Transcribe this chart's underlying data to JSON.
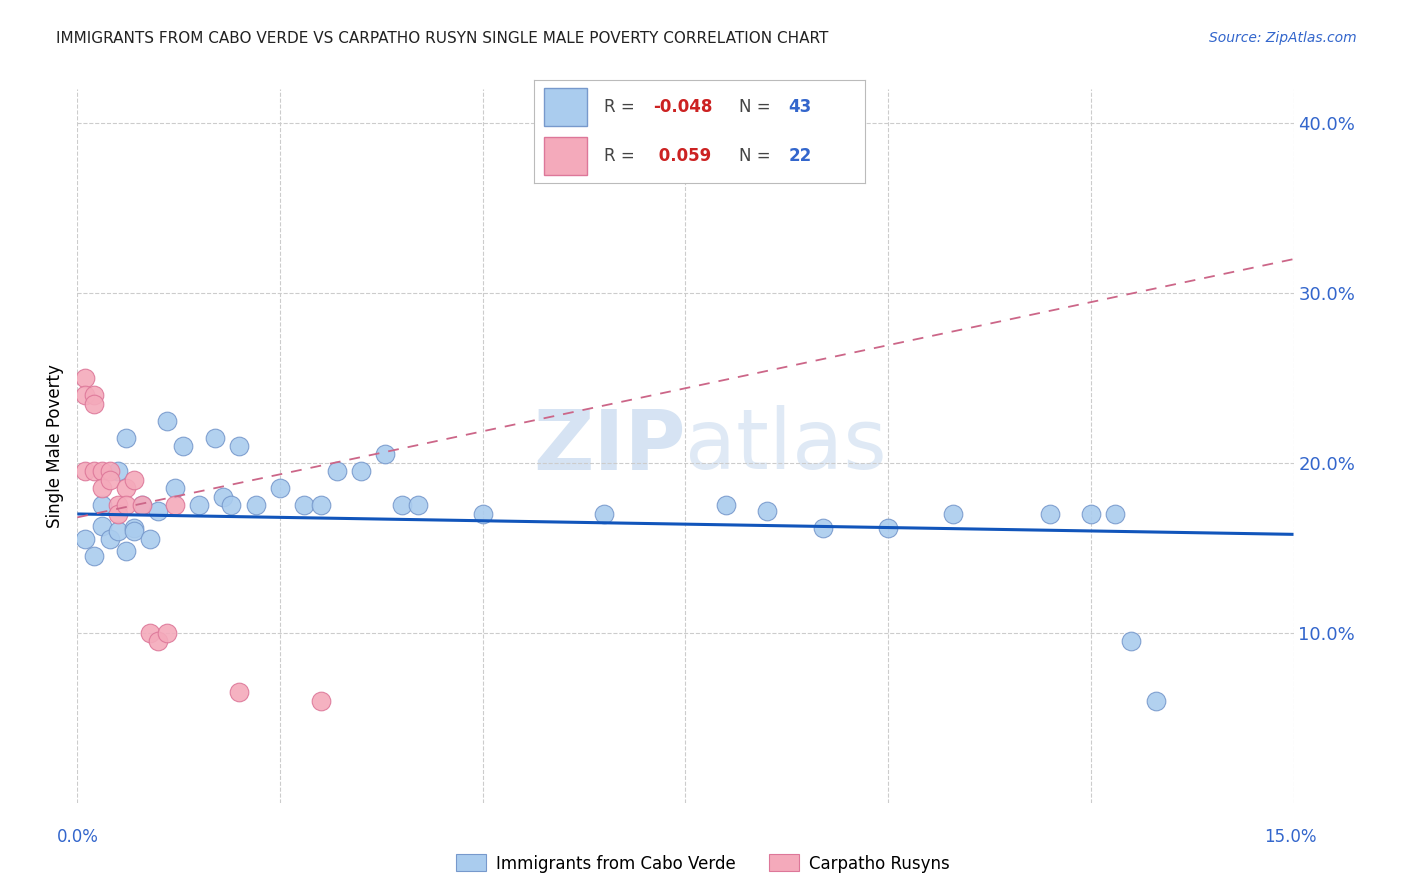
{
  "title": "IMMIGRANTS FROM CABO VERDE VS CARPATHO RUSYN SINGLE MALE POVERTY CORRELATION CHART",
  "source": "Source: ZipAtlas.com",
  "ylabel": "Single Male Poverty",
  "r1": -0.048,
  "n1": 43,
  "r2": 0.059,
  "n2": 22,
  "legend1": "Immigrants from Cabo Verde",
  "legend2": "Carpatho Rusyns",
  "color1": "#aaccee",
  "color2": "#f4aabb",
  "color1_edge": "#7799cc",
  "color2_edge": "#dd7799",
  "trendline1_color": "#1155bb",
  "trendline2_color": "#cc6688",
  "xlim": [
    0.0,
    0.15
  ],
  "ylim": [
    0.0,
    0.42
  ],
  "ytick_vals": [
    0.1,
    0.2,
    0.3,
    0.4
  ],
  "ytick_labels": [
    "10.0%",
    "20.0%",
    "30.0%",
    "40.0%"
  ],
  "background_color": "#ffffff",
  "grid_color": "#cccccc",
  "watermark_color": "#c5d8ee",
  "cv_trend": [
    0.17,
    0.158
  ],
  "cr_trend": [
    0.168,
    0.32
  ],
  "cabo_verde_x": [
    0.001,
    0.002,
    0.003,
    0.003,
    0.004,
    0.005,
    0.005,
    0.006,
    0.006,
    0.007,
    0.007,
    0.008,
    0.009,
    0.01,
    0.011,
    0.012,
    0.013,
    0.015,
    0.017,
    0.018,
    0.019,
    0.02,
    0.022,
    0.025,
    0.028,
    0.03,
    0.032,
    0.035,
    0.038,
    0.04,
    0.042,
    0.05,
    0.065,
    0.08,
    0.085,
    0.092,
    0.1,
    0.108,
    0.12,
    0.125,
    0.128,
    0.13,
    0.133
  ],
  "cabo_verde_y": [
    0.155,
    0.145,
    0.175,
    0.163,
    0.155,
    0.195,
    0.16,
    0.215,
    0.148,
    0.162,
    0.16,
    0.175,
    0.155,
    0.172,
    0.225,
    0.185,
    0.21,
    0.175,
    0.215,
    0.18,
    0.175,
    0.21,
    0.175,
    0.185,
    0.175,
    0.175,
    0.195,
    0.195,
    0.205,
    0.175,
    0.175,
    0.17,
    0.17,
    0.175,
    0.172,
    0.162,
    0.162,
    0.17,
    0.17,
    0.17,
    0.17,
    0.095,
    0.06
  ],
  "carpatho_x": [
    0.001,
    0.001,
    0.001,
    0.002,
    0.002,
    0.002,
    0.003,
    0.003,
    0.004,
    0.004,
    0.005,
    0.005,
    0.006,
    0.006,
    0.007,
    0.008,
    0.009,
    0.01,
    0.011,
    0.012,
    0.02,
    0.03
  ],
  "carpatho_y": [
    0.25,
    0.24,
    0.195,
    0.24,
    0.235,
    0.195,
    0.195,
    0.185,
    0.195,
    0.19,
    0.175,
    0.17,
    0.185,
    0.175,
    0.19,
    0.175,
    0.1,
    0.095,
    0.1,
    0.175,
    0.065,
    0.06
  ]
}
